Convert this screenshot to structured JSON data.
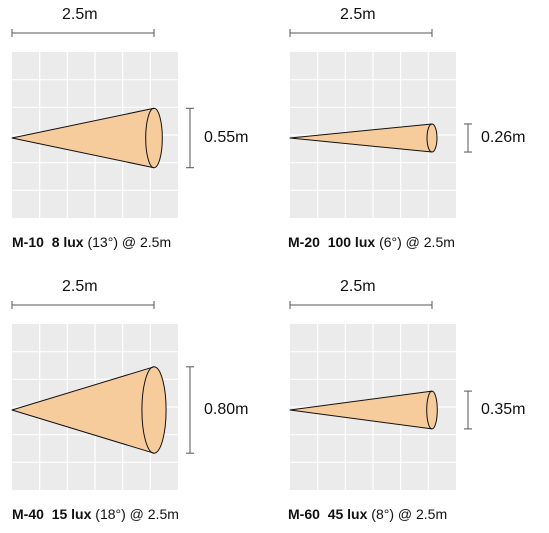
{
  "beams": [
    {
      "model": "M-10",
      "lux": "8 lux",
      "angle": "(13°)",
      "at": "@ 2.5m",
      "distance": "2.5m",
      "width": "0.55m",
      "width_m": 0.55
    },
    {
      "model": "M-20",
      "lux": "100 lux",
      "angle": "(6°)",
      "at": "@ 2.5m",
      "distance": "2.5m",
      "width": "0.26m",
      "width_m": 0.26
    },
    {
      "model": "M-40",
      "lux": "15 lux",
      "angle": "(18°)",
      "at": "@ 2.5m",
      "distance": "2.5m",
      "width": "0.80m",
      "width_m": 0.8
    },
    {
      "model": "M-60",
      "lux": "45 lux",
      "angle": "(8°)",
      "at": "@ 2.5m",
      "distance": "2.5m",
      "width": "0.35m",
      "width_m": 0.35
    }
  ],
  "colors": {
    "grid_bg": "#ebebeb",
    "grid_line": "#ffffff",
    "beam_fill": "#f7cc9c",
    "beam_stroke": "#111111",
    "dim_line": "#555555"
  }
}
